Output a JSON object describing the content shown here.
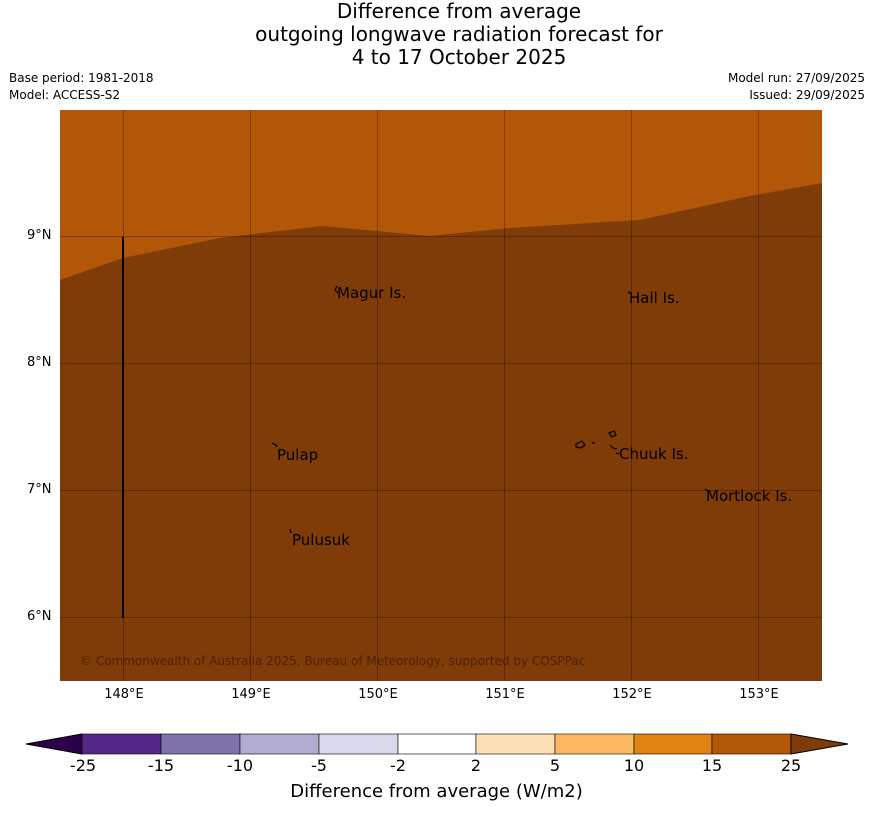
{
  "title": {
    "line1": "Difference from average",
    "line2": "outgoing longwave radiation forecast for",
    "line3": "4 to 17 October 2025"
  },
  "meta": {
    "base_period": "Base period: 1981-2018",
    "model": "Model: ACCESS-S2",
    "model_run": "Model run: 27/09/2025",
    "issued": "Issued: 29/09/2025"
  },
  "map": {
    "latitude_labels": [
      "9°N",
      "8°N",
      "7°N",
      "6°N"
    ],
    "longitude_labels": [
      "148°E",
      "149°E",
      "150°E",
      "151°E",
      "152°E",
      "153°E"
    ],
    "places": [
      "Magur Is.",
      "Hall Is.",
      "Pulap",
      "Chuuk Is.",
      "Mortlock Is.",
      "Pulusuk"
    ],
    "copyright": "© Commonwealth of Australia 2025, Bureau of Meteorology, supported by COSPPac",
    "fill_colors": {
      "band_15_25": "#b15707",
      "above_25": "#7f3b08"
    }
  },
  "colorbar": {
    "ticks": [
      "-25",
      "-15",
      "-10",
      "-5",
      "-2",
      "2",
      "5",
      "10",
      "15",
      "25"
    ],
    "colors": [
      "#2d004b",
      "#542788",
      "#8073ac",
      "#b2abd2",
      "#d8daeb",
      "#ffffff",
      "#fee0b6",
      "#fdb863",
      "#e08214",
      "#b35806",
      "#7f3b08"
    ],
    "title": "Difference from average (W/m2)"
  }
}
